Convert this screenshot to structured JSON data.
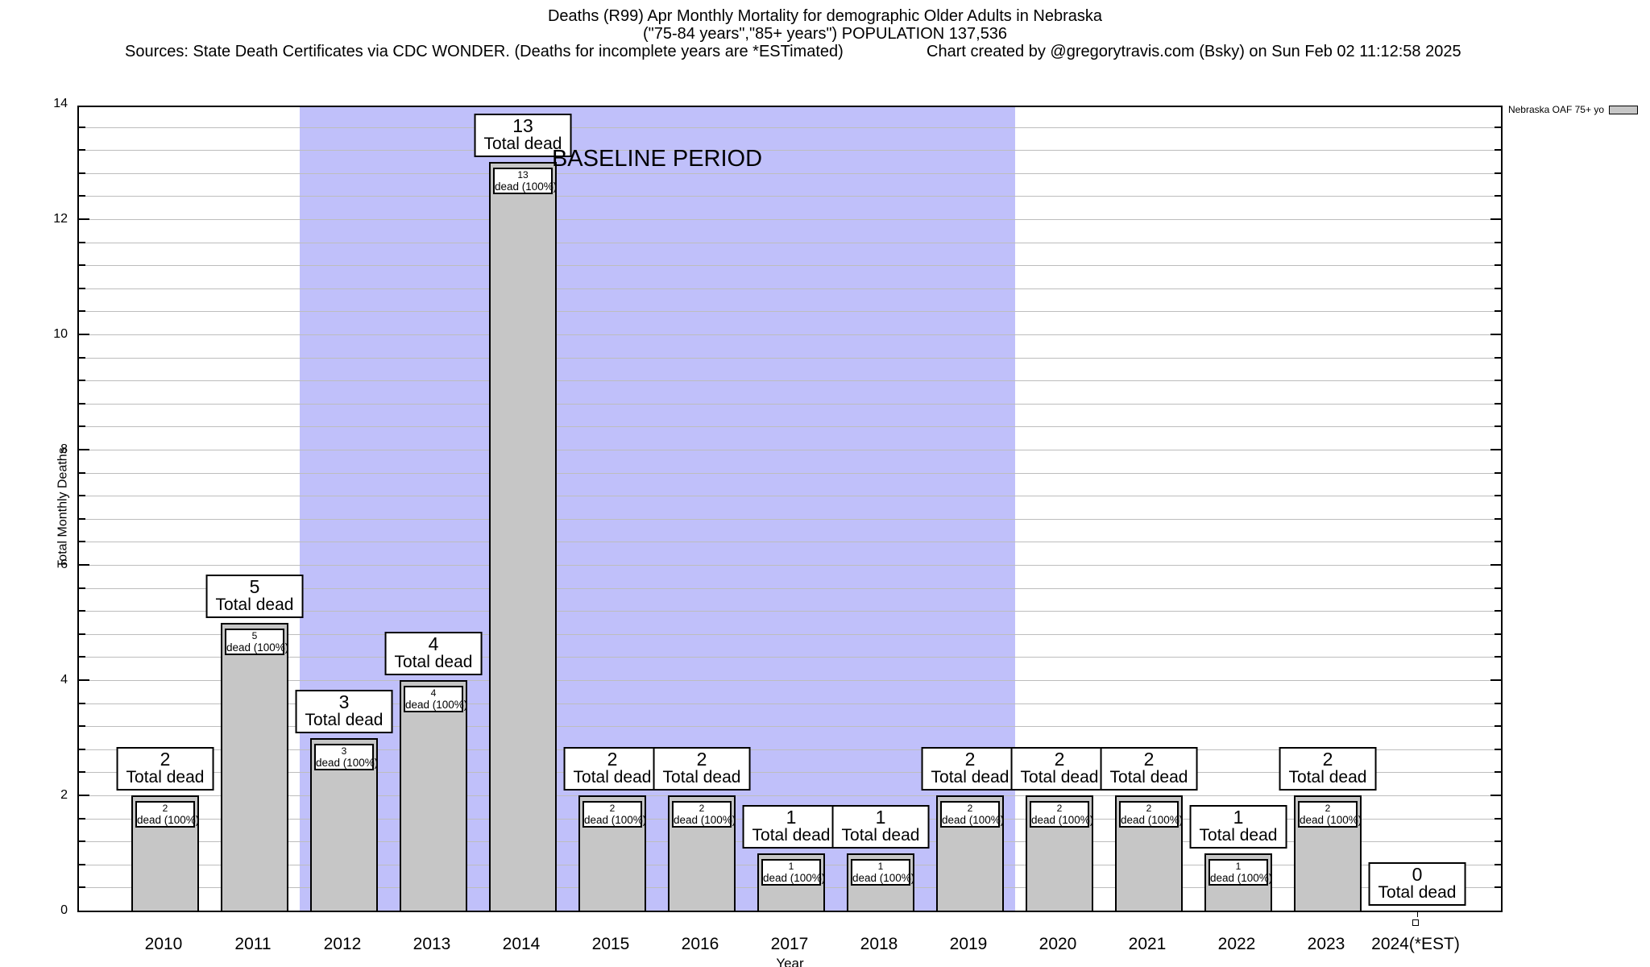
{
  "header": {
    "title_line1": "Deaths (R99) Apr Monthly Mortality for demographic Older Adults in Nebraska",
    "title_line2": "(\"75-84 years\",\"85+ years\") POPULATION 137,536",
    "sources": "Sources: State Death Certificates via CDC WONDER. (Deaths for incomplete years are *ESTimated)",
    "credit": "Chart created by @gregorytravis.com (Bsky) on Sun Feb 02 11:12:58 2025"
  },
  "legend": {
    "label": "Nebraska OAF 75+ yo",
    "swatch_color": "#c6c6c6"
  },
  "chart_data": {
    "type": "bar",
    "title": "Deaths (R99) Apr Monthly Mortality for demographic Older Adults in Nebraska",
    "subtitle": "(\"75-84 years\",\"85+ years\") POPULATION 137,536",
    "xlabel": "Year",
    "ylabel": "Total Monthly Deaths",
    "ylim": [
      0,
      14
    ],
    "yticks": [
      0,
      2,
      4,
      6,
      8,
      10,
      12,
      14
    ],
    "minor_grid_step": 0.4,
    "grid": true,
    "legend_position": "outside-top-right",
    "categories": [
      "2010",
      "2011",
      "2012",
      "2013",
      "2014",
      "2015",
      "2016",
      "2017",
      "2018",
      "2019",
      "2020",
      "2021",
      "2022",
      "2023",
      "2024(*EST)"
    ],
    "values": [
      2,
      5,
      3,
      4,
      13,
      2,
      2,
      1,
      1,
      2,
      2,
      2,
      1,
      2,
      0
    ],
    "bar_top_label": "Total dead",
    "bar_inner_label_suffix": "dead (100%)",
    "baseline_region": {
      "label": "BASELINE PERIOD",
      "from_year": 2011.5,
      "to_year": 2019.5,
      "color": "#c0c0fa"
    },
    "colors": {
      "bar": "#c6c6c6",
      "grid": "#bdbdbd",
      "baseline": "#c0c0fa",
      "axis": "#000000"
    }
  }
}
